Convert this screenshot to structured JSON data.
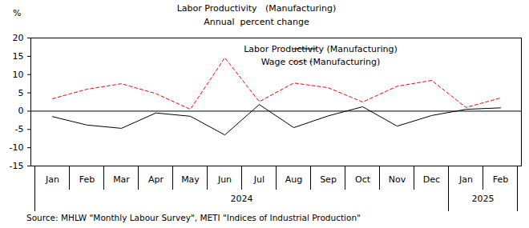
{
  "chart_data": {
    "type": "line",
    "title": "Labor Productivity   (Manufacturing)",
    "subtitle": "Annual  percent change",
    "y_label": "%",
    "caption": "Source: MHLW \"Monthly Labour Survey\", METI \"Indices of Industrial Production\"",
    "categories": [
      "Jan",
      "Feb",
      "Mar",
      "Apr",
      "May",
      "Jun",
      "Jul",
      "Aug",
      "Sep",
      "Oct",
      "Nov",
      "Dec",
      "Jan",
      "Feb"
    ],
    "years": [
      "2024",
      "2024",
      "2024",
      "2024",
      "2024",
      "2024",
      "2024",
      "2024",
      "2024",
      "2024",
      "2024",
      "2024",
      "2025",
      "2025"
    ],
    "series": [
      {
        "name": "Labor Productivity (Manufacturing)",
        "color": "#000000",
        "line_style": "solid",
        "values": [
          -1.5,
          -3.8,
          -4.7,
          -0.5,
          -1.4,
          -6.5,
          1.8,
          -4.5,
          -1.3,
          1.2,
          -4.1,
          -1.2,
          0.5,
          0.9
        ]
      },
      {
        "name": "Wage cost (Manufacturing)",
        "color": "#ff0000",
        "line_style": "dashed",
        "values": [
          3.4,
          6.0,
          7.5,
          4.8,
          0.5,
          14.6,
          2.6,
          7.7,
          6.4,
          2.5,
          6.8,
          8.4,
          1.0,
          3.6
        ]
      }
    ],
    "ylim": [
      -15,
      20
    ],
    "yticks": [
      -15,
      -10,
      -5,
      0,
      5,
      10,
      15,
      20
    ],
    "grid": false,
    "legend": "top-right"
  }
}
